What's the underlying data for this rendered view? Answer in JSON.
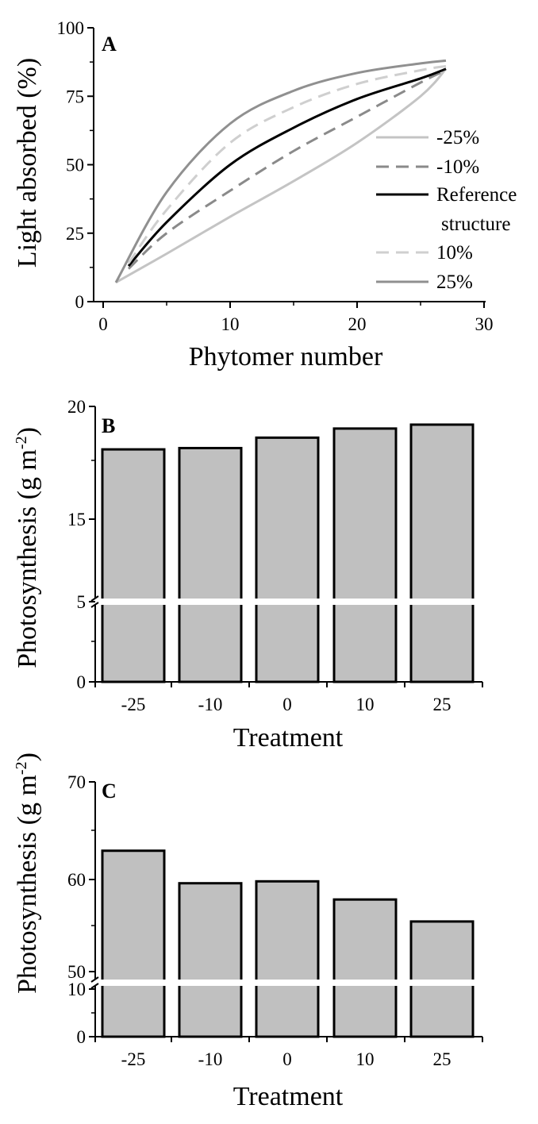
{
  "chart_data": [
    {
      "type": "line",
      "panel": "A",
      "xlabel": "Phytomer number",
      "ylabel": "Light absorbed (%)",
      "xlim": [
        0,
        30
      ],
      "ylim": [
        0,
        100
      ],
      "xticks": [
        0,
        10,
        20,
        30
      ],
      "yticks": [
        0,
        25,
        50,
        75,
        100
      ],
      "grid": false,
      "legend_position": "right",
      "series": [
        {
          "name": "-25%",
          "color": "#c4c4c4",
          "dash": "solid",
          "x": [
            1,
            5,
            10,
            15,
            20,
            25,
            27
          ],
          "y": [
            7,
            17.5,
            31,
            44,
            58,
            75,
            85
          ]
        },
        {
          "name": "-10%",
          "color": "#8a8a8a",
          "dash": "dashed",
          "x": [
            2,
            5,
            10,
            15,
            20,
            25,
            27
          ],
          "y": [
            12,
            25,
            40.5,
            55,
            67.5,
            80,
            84.5
          ]
        },
        {
          "name": "Reference structure",
          "color": "#000000",
          "dash": "solid",
          "x": [
            2,
            5,
            10,
            15,
            20,
            25,
            27
          ],
          "y": [
            13,
            29,
            50,
            63.5,
            74,
            81.5,
            85
          ]
        },
        {
          "name": "10%",
          "color": "#cfcfcf",
          "dash": "dashed",
          "x": [
            2,
            5,
            10,
            15,
            20,
            25,
            27
          ],
          "y": [
            14,
            33.5,
            58,
            71,
            79.5,
            84.5,
            86
          ]
        },
        {
          "name": "25%",
          "color": "#909090",
          "dash": "solid",
          "x": [
            1,
            5,
            10,
            15,
            20,
            25,
            27
          ],
          "y": [
            7,
            40,
            65,
            77,
            83.5,
            87,
            88
          ]
        }
      ]
    },
    {
      "type": "bar",
      "panel": "B",
      "xlabel": "Treatment",
      "ylabel": "Photosynthesis (g m⁻²)",
      "categories": [
        "-25",
        "-10",
        "0",
        "10",
        "25"
      ],
      "values": [
        16.7,
        16.8,
        17.6,
        18.3,
        18.6
      ],
      "axis_break": {
        "lower": [
          0,
          5
        ],
        "upper": [
          5,
          20
        ]
      },
      "yticks": [
        "0",
        "5",
        "15",
        "20"
      ],
      "bar_color": "#c0c0c0"
    },
    {
      "type": "bar",
      "panel": "C",
      "xlabel": "Treatment",
      "ylabel": "Photosynthesis (g m⁻²)",
      "categories": [
        "-25",
        "-10",
        "0",
        "10",
        "25"
      ],
      "values": [
        62.8,
        59.4,
        59.6,
        57.7,
        55.4
      ],
      "axis_break": {
        "lower": [
          0,
          10
        ],
        "upper": [
          49,
          70
        ]
      },
      "yticks": [
        "0",
        "10",
        "50",
        "60",
        "70"
      ],
      "bar_color": "#c0c0c0"
    }
  ]
}
